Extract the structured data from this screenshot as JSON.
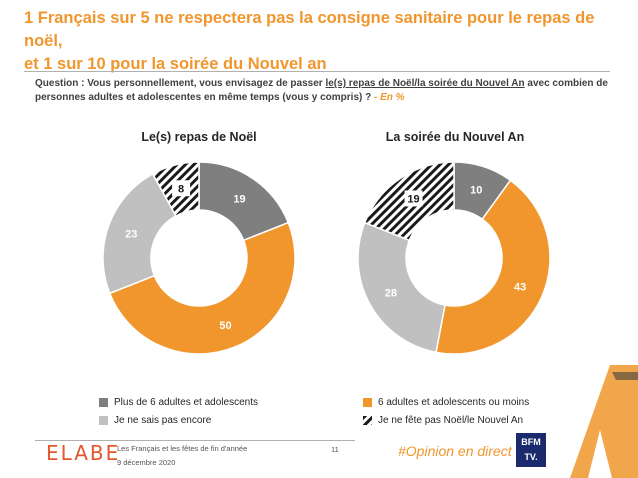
{
  "title_line1": "1 Français sur 5 ne respectera pas la consigne sanitaire pour le repas de noël,",
  "title_line2": "et 1 sur 10 pour la soirée du Nouvel an",
  "question_prefix": "Question : Vous personnellement, vous envisagez de passer ",
  "question_underlined": "le(s) repas de Noël/la soirée du Nouvel An",
  "question_suffix": " avec combien de personnes adultes et adolescentes en même temps (vous y compris) ?",
  "question_unit": " - En %",
  "colors": {
    "plus6": "#7f7f7f",
    "six_or_less": "#f0962d",
    "unsure": "#c0c0c0",
    "no_celebrate": "#1a1a1a",
    "title": "#f0962d"
  },
  "legend": [
    {
      "label": "Plus de 6 adultes et adolescents",
      "key": "plus6"
    },
    {
      "label": "6 adultes et adolescents ou moins",
      "key": "six_or_less"
    },
    {
      "label": "Je ne sais pas encore",
      "key": "unsure"
    },
    {
      "label": "Je ne fête pas Noël/le Nouvel An",
      "key": "no_celebrate"
    }
  ],
  "chart_data": [
    {
      "type": "pie",
      "title": "Le(s) repas de Noël",
      "categories": [
        "Plus de 6 adultes et adolescents",
        "6 adultes et adolescents ou moins",
        "Je ne sais pas encore",
        "Je ne fête pas Noël/le Nouvel An"
      ],
      "values": [
        19,
        50,
        23,
        8
      ]
    },
    {
      "type": "pie",
      "title": "La soirée du Nouvel An",
      "categories": [
        "Plus de 6 adultes et adolescents",
        "6 adultes et adolescents ou moins",
        "Je ne sais pas encore",
        "Je ne fête pas Noël/le Nouvel An"
      ],
      "values": [
        10,
        43,
        28,
        19
      ]
    }
  ],
  "footer": {
    "logo": "ELABE",
    "study": "Les Français et les fêtes de fin d'année",
    "date": "9 décembre 2020",
    "page": "11",
    "hashtag": "#Opinion en direct",
    "bfm_line1": "BFM",
    "bfm_line2": "TV."
  }
}
